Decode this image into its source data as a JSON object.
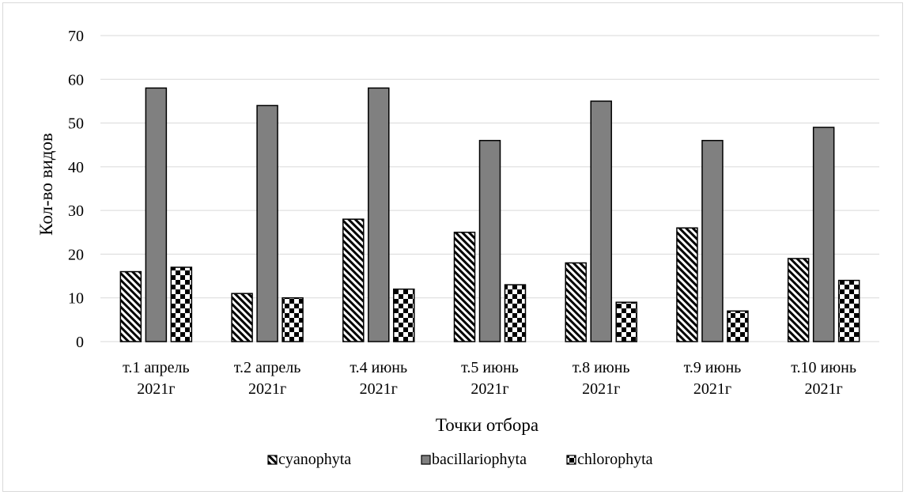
{
  "chart_data": {
    "type": "bar",
    "xlabel": "Точки отбора",
    "ylabel": "Кол-во видов",
    "ylim": [
      0,
      70
    ],
    "yticks": [
      0,
      10,
      20,
      30,
      40,
      50,
      60,
      70
    ],
    "grid": true,
    "legend_position": "bottom",
    "categories": [
      [
        "т.1 апрель",
        "2021г"
      ],
      [
        "т.2 апрель",
        "2021г"
      ],
      [
        "т.4 июнь",
        "2021г"
      ],
      [
        "т.5 июнь",
        "2021г"
      ],
      [
        "т.8 июнь",
        "2021г"
      ],
      [
        "т.9 июнь",
        "2021г"
      ],
      [
        "т.10 июнь",
        "2021г"
      ]
    ],
    "series": [
      {
        "name": "cyanophyta",
        "pattern": "diagonal-stripes",
        "color": "#000000",
        "values": [
          16,
          11,
          28,
          25,
          18,
          26,
          19
        ]
      },
      {
        "name": "bacillariophyta",
        "pattern": "solid",
        "color": "#808080",
        "values": [
          58,
          54,
          58,
          46,
          55,
          46,
          49
        ]
      },
      {
        "name": "chlorophyta",
        "pattern": "checkerboard",
        "color": "#000000",
        "values": [
          17,
          10,
          12,
          13,
          9,
          7,
          14
        ]
      }
    ]
  }
}
